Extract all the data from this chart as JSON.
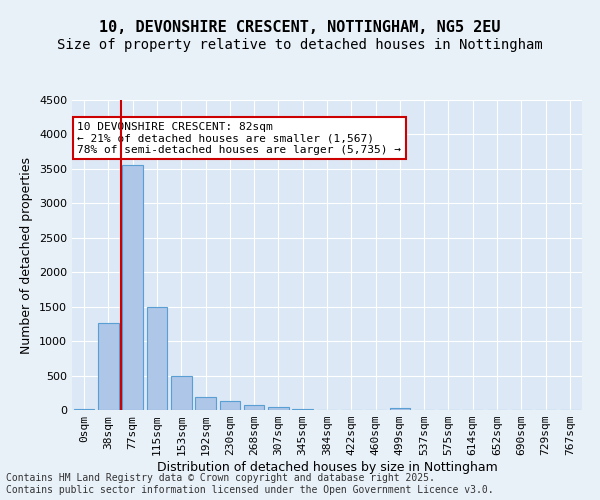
{
  "title_line1": "10, DEVONSHIRE CRESCENT, NOTTINGHAM, NG5 2EU",
  "title_line2": "Size of property relative to detached houses in Nottingham",
  "xlabel": "Distribution of detached houses by size in Nottingham",
  "ylabel": "Number of detached properties",
  "categories": [
    "0sqm",
    "38sqm",
    "77sqm",
    "115sqm",
    "153sqm",
    "192sqm",
    "230sqm",
    "268sqm",
    "307sqm",
    "345sqm",
    "384sqm",
    "422sqm",
    "460sqm",
    "499sqm",
    "537sqm",
    "575sqm",
    "614sqm",
    "652sqm",
    "690sqm",
    "729sqm",
    "767sqm"
  ],
  "values": [
    10,
    1270,
    3560,
    1490,
    500,
    185,
    135,
    75,
    40,
    15,
    0,
    0,
    0,
    30,
    0,
    0,
    0,
    0,
    0,
    0,
    0
  ],
  "bar_color": "#aec6e8",
  "bar_edge_color": "#5a9fd4",
  "property_line_x": 2,
  "property_line_color": "#cc0000",
  "annotation_text": "10 DEVONSHIRE CRESCENT: 82sqm\n← 21% of detached houses are smaller (1,567)\n78% of semi-detached houses are larger (5,735) →",
  "annotation_box_color": "#ffffff",
  "annotation_box_edge": "#cc0000",
  "ylim": [
    0,
    4500
  ],
  "yticks": [
    0,
    500,
    1000,
    1500,
    2000,
    2500,
    3000,
    3500,
    4000,
    4500
  ],
  "bg_color": "#e8f0f8",
  "plot_bg_color": "#dce8f5",
  "grid_color": "#ffffff",
  "footer_text": "Contains HM Land Registry data © Crown copyright and database right 2025.\nContains public sector information licensed under the Open Government Licence v3.0.",
  "title_fontsize": 11,
  "subtitle_fontsize": 10,
  "axis_label_fontsize": 9,
  "tick_fontsize": 8,
  "annotation_fontsize": 8,
  "footer_fontsize": 7
}
